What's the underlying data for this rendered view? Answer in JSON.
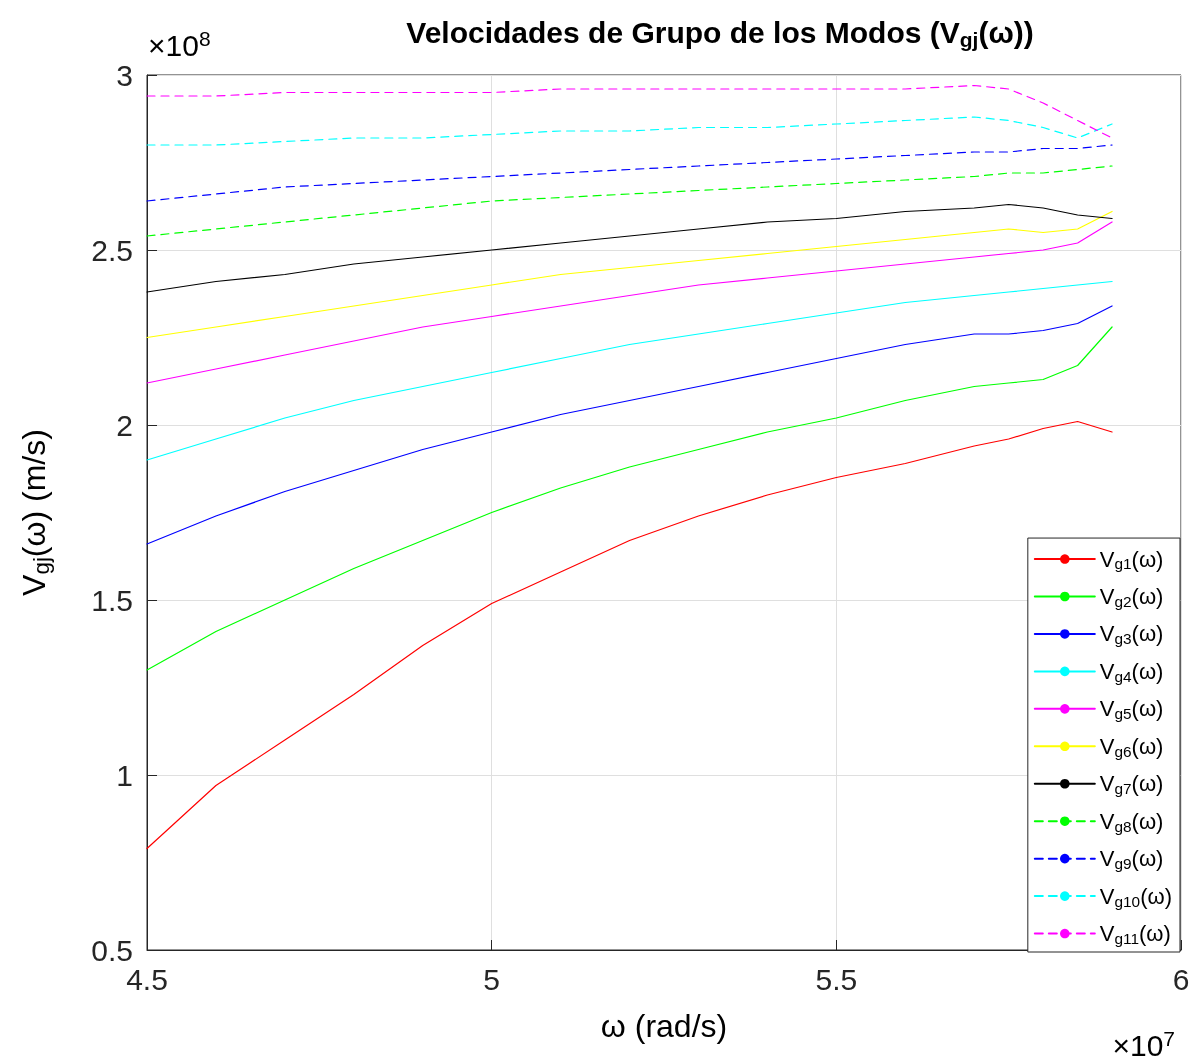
{
  "chart_data": {
    "type": "line",
    "title": "Velocidades de Grupo de los Modos (V$_{gj}$(ω))",
    "xlabel": "ω (rad/s)",
    "ylabel": "V$_{gj}$(ω) (m/s)",
    "annotations": [
      "×10$^{8}$",
      "×10$^{7}$"
    ],
    "x": [
      4.5,
      4.6,
      4.7,
      4.8,
      4.9,
      5.0,
      5.1,
      5.2,
      5.3,
      5.4,
      5.5,
      5.6,
      5.7,
      5.75,
      5.8,
      5.85,
      5.9
    ],
    "xlim": [
      4.5,
      6
    ],
    "xticks": [
      4.5,
      5,
      5.5,
      6
    ],
    "ylim": [
      0.5,
      3
    ],
    "yticks": [
      0.5,
      1,
      1.5,
      2,
      2.5,
      3
    ],
    "grid": true,
    "legend": "bottom right",
    "marker": "none",
    "series": [
      {
        "name": "V$_{g1}$(ω)",
        "color": "#ff0000",
        "line_style": "solid",
        "values": [
          0.79,
          0.97,
          1.1,
          1.23,
          1.37,
          1.49,
          1.58,
          1.67,
          1.74,
          1.8,
          1.85,
          1.89,
          1.94,
          1.96,
          1.99,
          2.01,
          1.98
        ]
      },
      {
        "name": "V$_{g2}$(ω)",
        "color": "#00ff00",
        "line_style": "solid",
        "values": [
          1.3,
          1.41,
          1.5,
          1.59,
          1.67,
          1.75,
          1.82,
          1.88,
          1.93,
          1.98,
          2.02,
          2.07,
          2.11,
          2.12,
          2.13,
          2.17,
          2.28
        ]
      },
      {
        "name": "V$_{g3}$(ω)",
        "color": "#0000ff",
        "line_style": "solid",
        "values": [
          1.66,
          1.74,
          1.81,
          1.87,
          1.93,
          1.98,
          2.03,
          2.07,
          2.11,
          2.15,
          2.19,
          2.23,
          2.26,
          2.26,
          2.27,
          2.29,
          2.34
        ]
      },
      {
        "name": "V$_{g4}$(ω)",
        "color": "#00ffff",
        "line_style": "solid",
        "values": [
          1.9,
          1.96,
          2.02,
          2.07,
          2.11,
          2.15,
          2.19,
          2.23,
          2.26,
          2.29,
          2.32,
          2.35,
          2.37,
          2.38,
          2.39,
          2.4,
          2.41
        ]
      },
      {
        "name": "V$_{g5}$(ω)",
        "color": "#ff00ff",
        "line_style": "solid",
        "values": [
          2.12,
          2.16,
          2.2,
          2.24,
          2.28,
          2.31,
          2.34,
          2.37,
          2.4,
          2.42,
          2.44,
          2.46,
          2.48,
          2.49,
          2.5,
          2.52,
          2.58
        ]
      },
      {
        "name": "V$_{g6}$(ω)",
        "color": "#ffff00",
        "line_style": "solid",
        "values": [
          2.25,
          2.28,
          2.31,
          2.34,
          2.37,
          2.4,
          2.43,
          2.45,
          2.47,
          2.49,
          2.51,
          2.53,
          2.55,
          2.56,
          2.55,
          2.56,
          2.61
        ]
      },
      {
        "name": "V$_{g7}$(ω)",
        "color": "#000000",
        "line_style": "solid",
        "values": [
          2.38,
          2.41,
          2.43,
          2.46,
          2.48,
          2.5,
          2.52,
          2.54,
          2.56,
          2.58,
          2.59,
          2.61,
          2.62,
          2.63,
          2.62,
          2.6,
          2.59
        ]
      },
      {
        "name": "V$_{g8}$(ω)",
        "color": "#00ff00",
        "line_style": "dashed",
        "values": [
          2.54,
          2.56,
          2.58,
          2.6,
          2.62,
          2.64,
          2.65,
          2.66,
          2.67,
          2.68,
          2.69,
          2.7,
          2.71,
          2.72,
          2.72,
          2.73,
          2.74
        ]
      },
      {
        "name": "V$_{g9}$(ω)",
        "color": "#0000ff",
        "line_style": "dashed",
        "values": [
          2.64,
          2.66,
          2.68,
          2.69,
          2.7,
          2.71,
          2.72,
          2.73,
          2.74,
          2.75,
          2.76,
          2.77,
          2.78,
          2.78,
          2.79,
          2.79,
          2.8
        ]
      },
      {
        "name": "V$_{g10}$(ω)",
        "color": "#00ffff",
        "line_style": "dashed",
        "values": [
          2.8,
          2.8,
          2.81,
          2.82,
          2.82,
          2.83,
          2.84,
          2.84,
          2.85,
          2.85,
          2.86,
          2.87,
          2.88,
          2.87,
          2.85,
          2.82,
          2.86
        ]
      },
      {
        "name": "V$_{g11}$(ω)",
        "color": "#ff00ff",
        "line_style": "dashed",
        "values": [
          2.94,
          2.94,
          2.95,
          2.95,
          2.95,
          2.95,
          2.96,
          2.96,
          2.96,
          2.96,
          2.96,
          2.96,
          2.97,
          2.96,
          2.92,
          2.87,
          2.82
        ]
      }
    ]
  }
}
